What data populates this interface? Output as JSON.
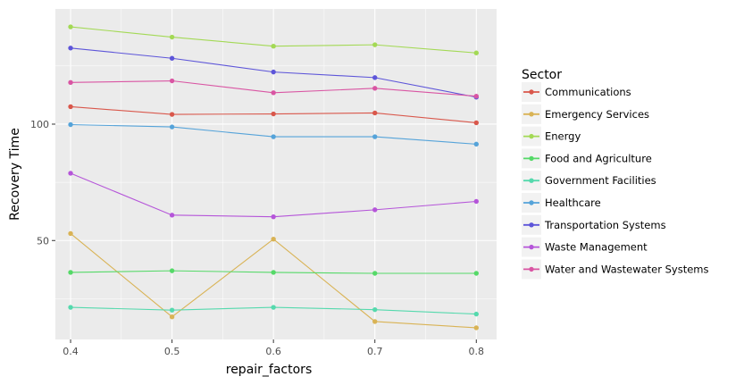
{
  "chart_data": {
    "type": "line",
    "title": "",
    "xlabel": "repair_factors",
    "ylabel": "Recovery Time",
    "x": [
      0.4,
      0.5,
      0.6,
      0.7,
      0.8
    ],
    "x_tick_labels": [
      "0.4",
      "0.5",
      "0.6",
      "0.7",
      "0.8"
    ],
    "y_ticks": [
      50,
      100
    ],
    "y_tick_labels": [
      "50",
      "100"
    ],
    "xlim": [
      0.385,
      0.82
    ],
    "ylim": [
      7.5,
      149.5
    ],
    "grid": true,
    "legend": {
      "title": "Sector",
      "placement": "right"
    },
    "series": [
      {
        "name": "Communications",
        "color": "#d9574b",
        "values": [
          107.5,
          104.2,
          104.4,
          104.8,
          100.6
        ]
      },
      {
        "name": "Emergency Services",
        "color": "#d9b355",
        "values": [
          53.0,
          17.2,
          50.6,
          15.2,
          12.5
        ]
      },
      {
        "name": "Energy",
        "color": "#a3d955",
        "values": [
          141.8,
          137.4,
          133.5,
          134.1,
          130.6
        ]
      },
      {
        "name": "Food and Agriculture",
        "color": "#55d968",
        "values": [
          36.3,
          37.0,
          36.3,
          35.9,
          35.9
        ]
      },
      {
        "name": "Government Facilities",
        "color": "#55d9ad",
        "values": [
          21.3,
          20.1,
          21.3,
          20.3,
          18.4
        ]
      },
      {
        "name": "Healthcare",
        "color": "#55a3d9",
        "values": [
          99.8,
          98.8,
          94.6,
          94.6,
          91.4
        ]
      },
      {
        "name": "Transportation Systems",
        "color": "#5d55d9",
        "values": [
          132.7,
          128.3,
          122.4,
          120.0,
          111.6
        ]
      },
      {
        "name": "Waste Management",
        "color": "#b555d9",
        "values": [
          78.9,
          60.9,
          60.2,
          63.2,
          66.8
        ]
      },
      {
        "name": "Water and Wastewater Systems",
        "color": "#d955a3",
        "values": [
          117.9,
          118.6,
          113.5,
          115.4,
          112.0
        ]
      }
    ]
  }
}
